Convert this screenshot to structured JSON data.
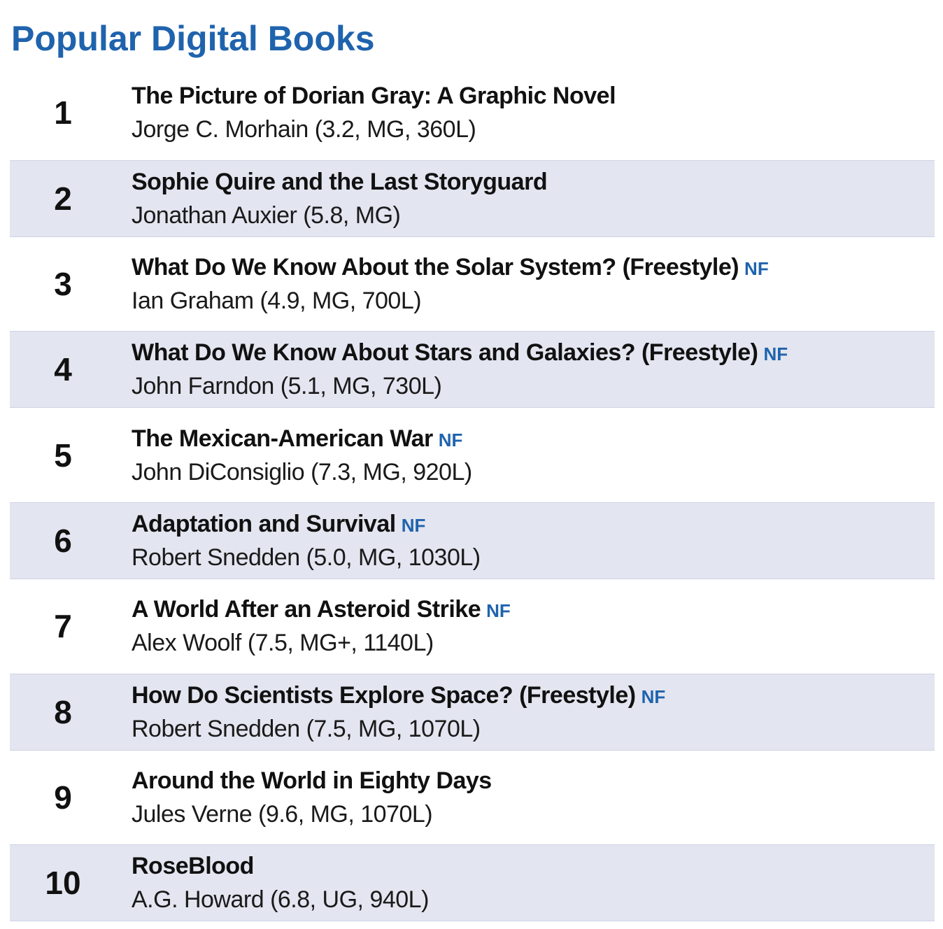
{
  "header": {
    "title": "Popular Digital Books"
  },
  "books": [
    {
      "rank": "1",
      "title": "The Picture of Dorian Gray: A Graphic Novel",
      "nf": "",
      "author": "Jorge C. Morhain (3.2, MG, 360L)"
    },
    {
      "rank": "2",
      "title": "Sophie Quire and the Last Storyguard",
      "nf": "",
      "author": "Jonathan Auxier (5.8, MG)"
    },
    {
      "rank": "3",
      "title": "What Do We Know About the Solar System? (Freestyle)",
      "nf": "NF",
      "author": "Ian Graham (4.9, MG, 700L)"
    },
    {
      "rank": "4",
      "title": "What Do We Know About Stars and Galaxies? (Freestyle)",
      "nf": "NF",
      "author": "John Farndon (5.1, MG, 730L)"
    },
    {
      "rank": "5",
      "title": "The Mexican-American War",
      "nf": "NF",
      "author": "John DiConsiglio (7.3, MG, 920L)"
    },
    {
      "rank": "6",
      "title": "Adaptation and Survival",
      "nf": "NF",
      "author": "Robert Snedden (5.0, MG, 1030L)"
    },
    {
      "rank": "7",
      "title": "A World After an Asteroid Strike",
      "nf": "NF",
      "author": "Alex Woolf (7.5, MG+, 1140L)"
    },
    {
      "rank": "8",
      "title": "How Do Scientists Explore Space? (Freestyle)",
      "nf": "NF",
      "author": "Robert Snedden (7.5, MG, 1070L)"
    },
    {
      "rank": "9",
      "title": "Around the World in Eighty Days",
      "nf": "",
      "author": "Jules Verne (9.6, MG, 1070L)"
    },
    {
      "rank": "10",
      "title": "RoseBlood",
      "nf": "",
      "author": "A.G. Howard (6.8, UG, 940L)"
    }
  ],
  "colors": {
    "accent": "#1f63ad",
    "row_shade": "#e3e5f0",
    "text": "#111111"
  }
}
